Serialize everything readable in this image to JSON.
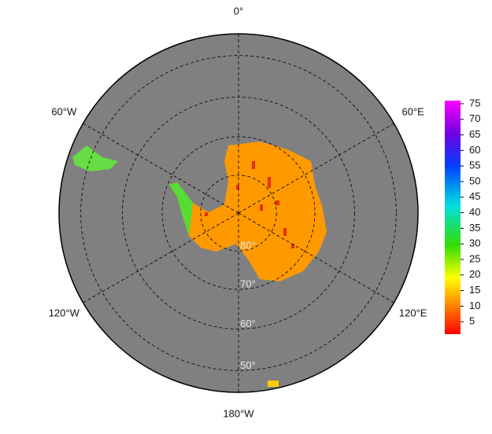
{
  "map": {
    "projection": "south-polar-stereographic",
    "boundary_lat": 45,
    "background": "#808080",
    "land_color": "#ff9900",
    "meridians": [
      {
        "value": 0,
        "label": "0°"
      },
      {
        "value": 60,
        "label": "60°E"
      },
      {
        "value": 120,
        "label": "120°E"
      },
      {
        "value": 180,
        "label": "180°W"
      },
      {
        "value": -120,
        "label": "120°W"
      },
      {
        "value": -60,
        "label": "60°W"
      }
    ],
    "parallels": [
      {
        "value": 80,
        "label": "80°"
      },
      {
        "value": 70,
        "label": "70°"
      },
      {
        "value": 60,
        "label": "60°"
      },
      {
        "value": 50,
        "label": "50°"
      }
    ]
  },
  "colorbar": {
    "lim": [
      1,
      76
    ],
    "ticks": [
      5,
      10,
      15,
      20,
      25,
      30,
      35,
      40,
      45,
      50,
      55,
      60,
      65,
      70,
      75
    ]
  }
}
